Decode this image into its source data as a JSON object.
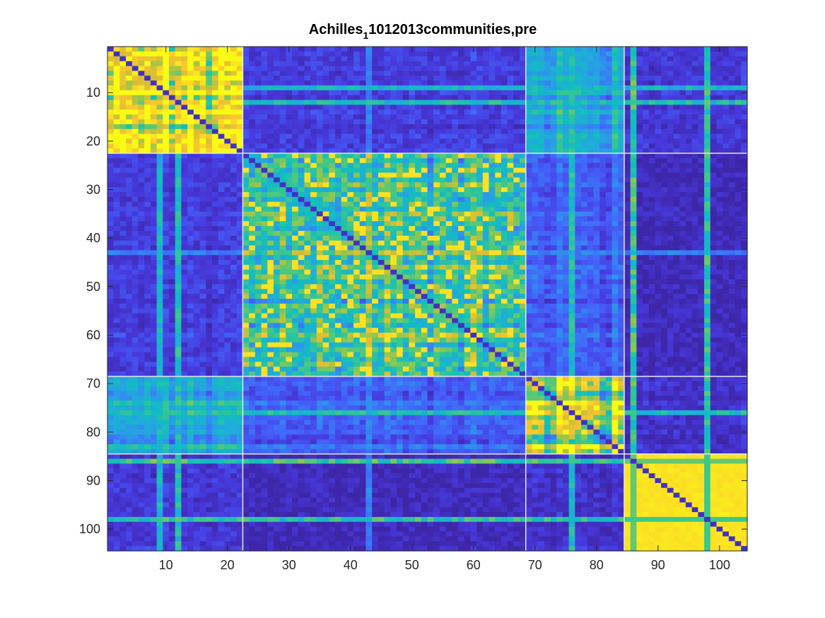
{
  "chart_data": {
    "type": "heatmap",
    "title": {
      "prefix": "Achilles",
      "subscript": "1",
      "suffix": "1012013communities,pre"
    },
    "n": 104,
    "xlim": [
      0.5,
      104.5
    ],
    "ylim": [
      0.5,
      104.5
    ],
    "y_direction": "reverse",
    "xticks": [
      10,
      20,
      30,
      40,
      50,
      60,
      70,
      80,
      90,
      100
    ],
    "yticks": [
      10,
      20,
      30,
      40,
      50,
      60,
      70,
      80,
      90,
      100
    ],
    "grid": false,
    "colormap": "parula",
    "communities": [
      {
        "start": 1,
        "end": 22
      },
      {
        "start": 23,
        "end": 68
      },
      {
        "start": 69,
        "end": 84
      },
      {
        "start": 85,
        "end": 104
      }
    ],
    "community_boundaries": [
      22.5,
      68.5,
      84.5
    ],
    "boundary_color": "#e6e6e6",
    "block_levels": [
      [
        0.85,
        0.1,
        0.4,
        0.08
      ],
      [
        0.1,
        0.55,
        0.2,
        0.03
      ],
      [
        0.4,
        0.2,
        0.8,
        0.07
      ],
      [
        0.08,
        0.03,
        0.07,
        0.97
      ]
    ],
    "bright_rows": [
      {
        "index": 12,
        "level": 0.55
      },
      {
        "index": 9,
        "level": 0.5
      },
      {
        "index": 43,
        "level": 0.3
      },
      {
        "index": 76,
        "level": 0.55
      },
      {
        "index": 86,
        "level": 0.65
      },
      {
        "index": 98,
        "level": 0.6
      }
    ]
  }
}
